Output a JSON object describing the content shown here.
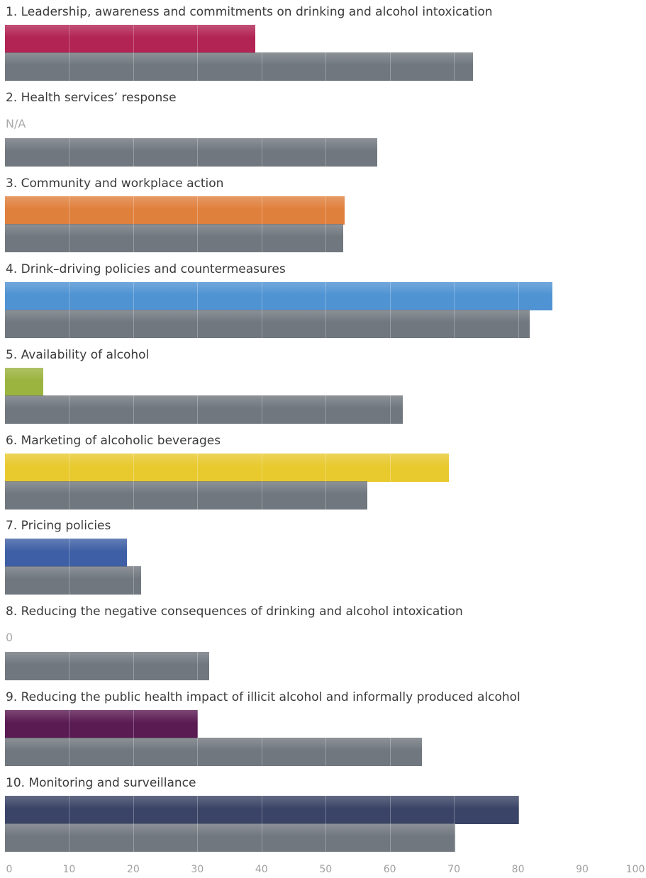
{
  "chart_data": {
    "type": "bar",
    "orientation": "horizontal",
    "xlim": [
      0,
      100
    ],
    "x_ticks": [
      "0",
      "10",
      "20",
      "30",
      "40",
      "50",
      "60",
      "70",
      "80",
      "90",
      "100"
    ],
    "grid": true,
    "categories": [
      {
        "label": "1. Leadership, awareness and commitments on drinking and alcohol intoxication",
        "value": 39,
        "value_text": null,
        "comparison": 73,
        "color": "#b22454"
      },
      {
        "label": "2. Health services’ response",
        "value": null,
        "value_text": "N/A",
        "comparison": 58,
        "color": null
      },
      {
        "label": "3. Community and workplace action",
        "value": 53,
        "value_text": null,
        "comparison": 52.7,
        "color": "#e0803d"
      },
      {
        "label": "4. Drink–driving policies and countermeasures",
        "value": 85.3,
        "value_text": null,
        "comparison": 81.8,
        "color": "#4f93d3"
      },
      {
        "label": "5. Availability of alcohol",
        "value": 6,
        "value_text": null,
        "comparison": 62,
        "color": "#9bb33f"
      },
      {
        "label": "6. Marketing of alcoholic beverages",
        "value": 69.2,
        "value_text": null,
        "comparison": 56.5,
        "color": "#e8c92e"
      },
      {
        "label": "7. Pricing policies",
        "value": 19,
        "value_text": null,
        "comparison": 21.2,
        "color": "#3e5fa5"
      },
      {
        "label": "8. Reducing the negative consequences of drinking and alcohol intoxication",
        "value": 0,
        "value_text": "0",
        "comparison": 31.8,
        "color": null
      },
      {
        "label": "9. Reducing the public health impact of illicit alcohol and informally produced alcohol",
        "value": 30.1,
        "value_text": null,
        "comparison": 65,
        "color": "#5a1a52"
      },
      {
        "label": "10. Monitoring and surveillance",
        "value": 80.2,
        "value_text": null,
        "comparison": 70.2,
        "color": "#3a4466"
      }
    ],
    "comparison_color": "#70777e"
  }
}
